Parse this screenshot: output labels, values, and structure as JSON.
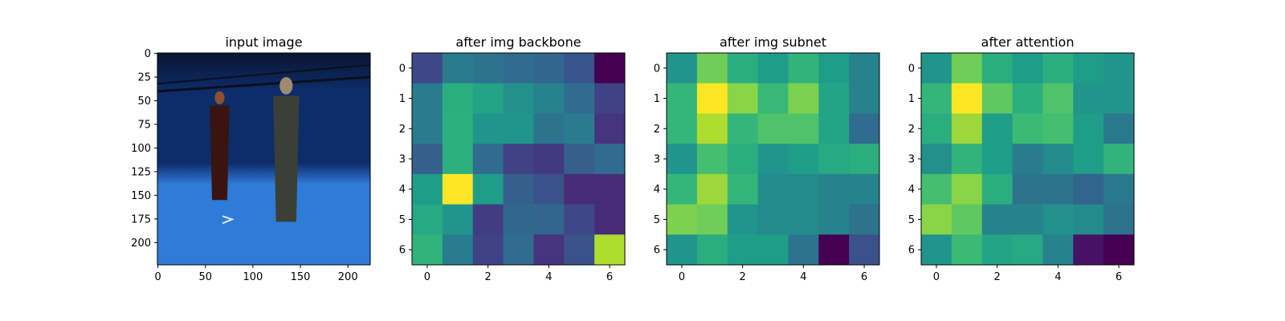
{
  "chart_data": [
    {
      "type": "image",
      "title": "input image",
      "xticks": [
        "0",
        "50",
        "100",
        "150",
        "200"
      ],
      "yticks": [
        "0",
        "25",
        "50",
        "75",
        "100",
        "125",
        "150",
        "175",
        "200"
      ],
      "xlim": [
        -0.5,
        223.5
      ],
      "ylim": [
        223.5,
        -0.5
      ],
      "scene": {
        "background_colors": [
          "#0d2d6a",
          "#2e7cd8",
          "#0a1530"
        ],
        "people": [
          {
            "x_center": 65,
            "top": 40,
            "bottom": 155,
            "color": "#3a1410"
          },
          {
            "x_center": 135,
            "top": 25,
            "bottom": 178,
            "color": "#3b3f36"
          }
        ]
      }
    },
    {
      "type": "heatmap",
      "title": "after img backbone",
      "xticks": [
        "0",
        "2",
        "4",
        "6"
      ],
      "yticks": [
        "0",
        "1",
        "2",
        "3",
        "4",
        "5",
        "6"
      ],
      "xlim": [
        -0.5,
        6.5
      ],
      "ylim": [
        6.5,
        -0.5
      ],
      "colormap": "viridis",
      "values": [
        [
          0.22,
          0.42,
          0.38,
          0.35,
          0.33,
          0.27,
          0.0
        ],
        [
          0.42,
          0.62,
          0.58,
          0.5,
          0.45,
          0.35,
          0.2
        ],
        [
          0.42,
          0.63,
          0.52,
          0.52,
          0.38,
          0.42,
          0.15
        ],
        [
          0.3,
          0.63,
          0.35,
          0.2,
          0.17,
          0.3,
          0.35
        ],
        [
          0.55,
          1.0,
          0.55,
          0.3,
          0.25,
          0.12,
          0.12
        ],
        [
          0.6,
          0.52,
          0.18,
          0.33,
          0.33,
          0.22,
          0.12
        ],
        [
          0.65,
          0.42,
          0.2,
          0.35,
          0.15,
          0.25,
          0.88
        ]
      ]
    },
    {
      "type": "heatmap",
      "title": "after img subnet",
      "xticks": [
        "0",
        "2",
        "4",
        "6"
      ],
      "yticks": [
        "0",
        "1",
        "2",
        "3",
        "4",
        "5",
        "6"
      ],
      "xlim": [
        -0.5,
        6.5
      ],
      "ylim": [
        6.5,
        -0.5
      ],
      "colormap": "viridis",
      "values": [
        [
          0.52,
          0.78,
          0.62,
          0.55,
          0.65,
          0.55,
          0.45
        ],
        [
          0.66,
          1.0,
          0.82,
          0.67,
          0.8,
          0.58,
          0.45
        ],
        [
          0.66,
          0.88,
          0.66,
          0.72,
          0.72,
          0.58,
          0.35
        ],
        [
          0.52,
          0.7,
          0.62,
          0.52,
          0.55,
          0.6,
          0.62
        ],
        [
          0.66,
          0.85,
          0.66,
          0.48,
          0.48,
          0.45,
          0.45
        ],
        [
          0.8,
          0.78,
          0.52,
          0.48,
          0.48,
          0.45,
          0.38
        ],
        [
          0.52,
          0.62,
          0.55,
          0.55,
          0.38,
          0.0,
          0.25
        ]
      ]
    },
    {
      "type": "heatmap",
      "title": "after attention",
      "xticks": [
        "0",
        "2",
        "4",
        "6"
      ],
      "yticks": [
        "0",
        "1",
        "2",
        "3",
        "4",
        "5",
        "6"
      ],
      "xlim": [
        -0.5,
        6.5
      ],
      "ylim": [
        6.5,
        -0.5
      ],
      "colormap": "viridis",
      "values": [
        [
          0.52,
          0.78,
          0.62,
          0.55,
          0.62,
          0.55,
          0.52
        ],
        [
          0.66,
          1.0,
          0.75,
          0.62,
          0.72,
          0.52,
          0.52
        ],
        [
          0.62,
          0.85,
          0.55,
          0.68,
          0.7,
          0.55,
          0.4
        ],
        [
          0.5,
          0.65,
          0.55,
          0.42,
          0.48,
          0.55,
          0.65
        ],
        [
          0.7,
          0.82,
          0.62,
          0.38,
          0.38,
          0.32,
          0.4
        ],
        [
          0.82,
          0.75,
          0.45,
          0.45,
          0.5,
          0.48,
          0.38
        ],
        [
          0.52,
          0.68,
          0.58,
          0.6,
          0.45,
          0.05,
          0.0
        ]
      ]
    }
  ]
}
